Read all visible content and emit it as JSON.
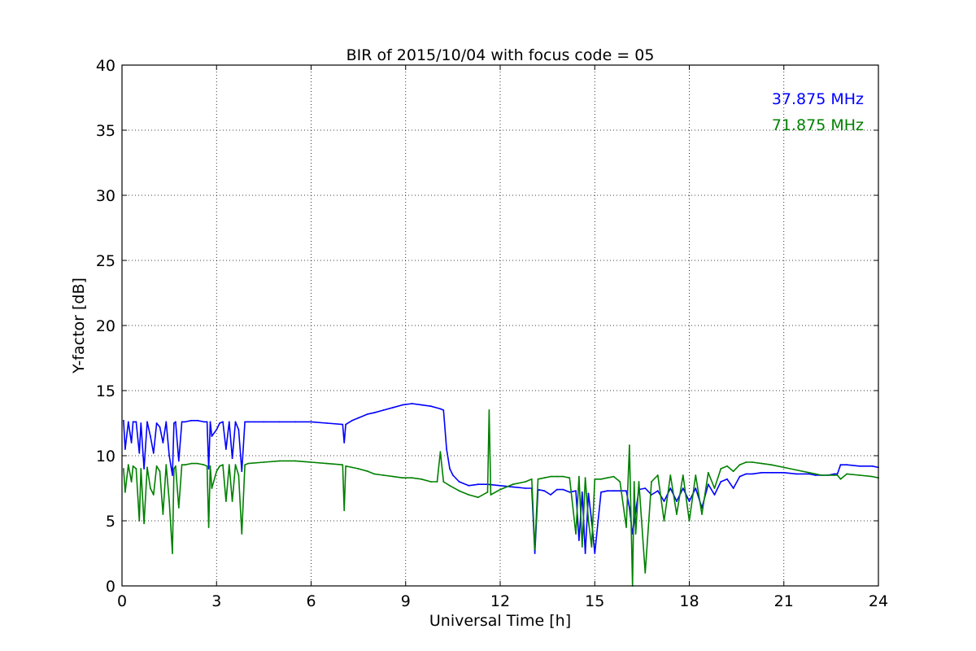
{
  "chart_data": {
    "type": "line",
    "title": "BIR of 2015/10/04 with focus code = 05",
    "xlabel": "Universal Time [h]",
    "ylabel": "Y-factor [dB]",
    "xlim": [
      0,
      24
    ],
    "ylim": [
      0,
      40
    ],
    "xticks": [
      0,
      3,
      6,
      9,
      12,
      15,
      18,
      21,
      24
    ],
    "xtick_labels": [
      "0",
      "3",
      "6",
      "9",
      "12",
      "15",
      "18",
      "21",
      "24"
    ],
    "yticks": [
      0,
      5,
      10,
      15,
      20,
      25,
      30,
      35,
      40
    ],
    "ytick_labels": [
      "0",
      "5",
      "10",
      "15",
      "20",
      "25",
      "30",
      "35",
      "40"
    ],
    "grid": true,
    "legend_placement": "top-right",
    "series": [
      {
        "name": "37.875 MHz",
        "color": "#0000ff",
        "x": [
          0.05,
          0.1,
          0.2,
          0.3,
          0.35,
          0.45,
          0.55,
          0.6,
          0.7,
          0.8,
          0.9,
          1.0,
          1.1,
          1.2,
          1.3,
          1.4,
          1.5,
          1.6,
          1.65,
          1.7,
          1.8,
          1.9,
          2.0,
          2.2,
          2.4,
          2.6,
          2.7,
          2.75,
          2.8,
          2.85,
          3.0,
          3.1,
          3.2,
          3.3,
          3.4,
          3.5,
          3.6,
          3.7,
          3.8,
          3.9,
          4.0,
          4.5,
          5.0,
          5.5,
          6.0,
          6.5,
          7.0,
          7.05,
          7.1,
          7.3,
          7.5,
          7.8,
          8.0,
          8.3,
          8.6,
          8.9,
          9.2,
          9.5,
          9.8,
          10.1,
          10.2,
          10.3,
          10.4,
          10.5,
          10.7,
          11.0,
          11.3,
          11.6,
          12.0,
          12.4,
          12.8,
          13.0,
          13.1,
          13.2,
          13.4,
          13.6,
          13.8,
          14.0,
          14.2,
          14.4,
          14.5,
          14.6,
          14.7,
          14.8,
          14.9,
          15.0,
          15.2,
          15.4,
          15.6,
          15.8,
          16.0,
          16.1,
          16.2,
          16.4,
          16.6,
          16.8,
          17.0,
          17.2,
          17.4,
          17.6,
          17.8,
          18.0,
          18.2,
          18.4,
          18.6,
          18.8,
          19.0,
          19.2,
          19.4,
          19.6,
          19.8,
          20.0,
          20.3,
          20.6,
          21.0,
          21.4,
          21.8,
          22.0,
          22.2,
          22.4,
          22.6,
          22.7,
          22.8,
          23.0,
          23.4,
          23.8,
          24.0
        ],
        "y": [
          12.7,
          10.5,
          12.6,
          11.0,
          12.6,
          12.6,
          10.2,
          12.5,
          9.0,
          12.6,
          11.5,
          10.2,
          12.5,
          12.2,
          11.0,
          12.6,
          10.0,
          8.5,
          12.5,
          12.6,
          9.6,
          12.6,
          12.6,
          12.7,
          12.7,
          12.6,
          12.6,
          9.0,
          12.6,
          11.5,
          12.0,
          12.5,
          12.6,
          10.5,
          12.6,
          9.8,
          12.6,
          12.0,
          8.8,
          12.6,
          12.6,
          12.6,
          12.6,
          12.6,
          12.6,
          12.5,
          12.4,
          11.0,
          12.4,
          12.7,
          12.9,
          13.2,
          13.3,
          13.5,
          13.7,
          13.9,
          14.0,
          13.9,
          13.8,
          13.6,
          13.5,
          10.5,
          9.0,
          8.5,
          8.0,
          7.7,
          7.8,
          7.8,
          7.7,
          7.6,
          7.5,
          7.5,
          2.5,
          7.4,
          7.3,
          7.0,
          7.4,
          7.4,
          7.2,
          7.3,
          3.5,
          7.2,
          2.5,
          7.1,
          5.0,
          2.5,
          7.2,
          7.3,
          7.3,
          7.3,
          7.3,
          6.0,
          4.0,
          7.4,
          7.5,
          7.0,
          7.3,
          6.5,
          7.5,
          6.5,
          7.5,
          6.5,
          7.5,
          6.0,
          7.8,
          7.0,
          8.0,
          8.2,
          7.5,
          8.4,
          8.6,
          8.6,
          8.7,
          8.7,
          8.7,
          8.6,
          8.6,
          8.5,
          8.5,
          8.5,
          8.6,
          8.6,
          9.3,
          9.3,
          9.2,
          9.2,
          9.1
        ]
      },
      {
        "name": "71.875 MHz",
        "color": "#008000",
        "x": [
          0.05,
          0.1,
          0.2,
          0.3,
          0.35,
          0.45,
          0.55,
          0.6,
          0.7,
          0.8,
          0.9,
          1.0,
          1.1,
          1.2,
          1.3,
          1.4,
          1.5,
          1.6,
          1.65,
          1.7,
          1.8,
          1.9,
          2.0,
          2.2,
          2.4,
          2.6,
          2.7,
          2.75,
          2.8,
          2.85,
          3.0,
          3.1,
          3.2,
          3.3,
          3.4,
          3.5,
          3.6,
          3.7,
          3.8,
          3.9,
          4.0,
          4.5,
          5.0,
          5.5,
          6.0,
          6.5,
          7.0,
          7.05,
          7.1,
          7.3,
          7.5,
          7.8,
          8.0,
          8.3,
          8.6,
          8.9,
          9.2,
          9.5,
          9.8,
          10.0,
          10.1,
          10.2,
          10.4,
          10.7,
          11.0,
          11.3,
          11.6,
          11.65,
          11.7,
          12.0,
          12.4,
          12.8,
          13.0,
          13.1,
          13.2,
          13.4,
          13.6,
          13.8,
          14.0,
          14.2,
          14.4,
          14.5,
          14.6,
          14.7,
          14.8,
          14.9,
          15.0,
          15.2,
          15.4,
          15.6,
          15.8,
          16.0,
          16.1,
          16.2,
          16.25,
          16.3,
          16.4,
          16.6,
          16.8,
          17.0,
          17.2,
          17.4,
          17.6,
          17.8,
          18.0,
          18.2,
          18.4,
          18.6,
          18.8,
          19.0,
          19.2,
          19.4,
          19.6,
          19.8,
          20.0,
          20.3,
          20.6,
          21.0,
          21.4,
          21.8,
          22.0,
          22.2,
          22.4,
          22.6,
          22.7,
          22.8,
          23.0,
          23.4,
          23.8,
          24.0
        ],
        "y": [
          9.0,
          7.2,
          9.3,
          8.0,
          9.2,
          9.0,
          5.0,
          9.0,
          4.8,
          9.1,
          7.5,
          7.0,
          9.2,
          8.8,
          5.5,
          9.3,
          6.5,
          2.5,
          9.0,
          9.2,
          6.0,
          9.3,
          9.3,
          9.4,
          9.4,
          9.3,
          9.2,
          4.5,
          9.2,
          7.5,
          8.8,
          9.2,
          9.3,
          6.5,
          9.3,
          6.5,
          9.3,
          8.5,
          4.0,
          9.3,
          9.4,
          9.5,
          9.6,
          9.6,
          9.5,
          9.4,
          9.3,
          5.8,
          9.2,
          9.1,
          9.0,
          8.8,
          8.6,
          8.5,
          8.4,
          8.3,
          8.3,
          8.2,
          8.0,
          8.0,
          10.3,
          8.0,
          7.7,
          7.3,
          7.0,
          6.8,
          7.2,
          13.5,
          7.0,
          7.4,
          7.8,
          8.0,
          8.2,
          2.8,
          8.2,
          8.3,
          8.4,
          8.4,
          8.4,
          8.3,
          4.0,
          8.4,
          3.0,
          8.3,
          5.0,
          3.0,
          8.2,
          8.2,
          8.3,
          8.4,
          8.0,
          4.5,
          10.8,
          0.0,
          8.0,
          4.0,
          8.0,
          1.0,
          8.0,
          8.5,
          5.0,
          8.5,
          5.5,
          8.5,
          5.0,
          8.5,
          5.5,
          8.7,
          7.5,
          9.0,
          9.2,
          8.8,
          9.3,
          9.5,
          9.5,
          9.4,
          9.3,
          9.1,
          8.9,
          8.7,
          8.6,
          8.5,
          8.5,
          8.5,
          8.5,
          8.2,
          8.6,
          8.5,
          8.4,
          8.3
        ]
      }
    ]
  }
}
